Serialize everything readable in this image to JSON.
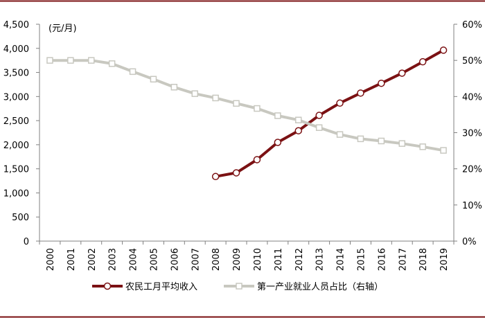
{
  "chart_data": {
    "type": "line",
    "title": "",
    "unit_label": "(元/月)",
    "categories": [
      "2000",
      "2001",
      "2002",
      "2003",
      "2004",
      "2005",
      "2006",
      "2007",
      "2008",
      "2009",
      "2010",
      "2011",
      "2012",
      "2013",
      "2014",
      "2015",
      "2016",
      "2017",
      "2018",
      "2019"
    ],
    "y_left": {
      "range": [
        0,
        4500
      ],
      "ticks": [
        "0",
        "500",
        "1,000",
        "1,500",
        "2,000",
        "2,500",
        "3,000",
        "3,500",
        "4,000",
        "4,500"
      ]
    },
    "y_right": {
      "range": [
        0,
        60
      ],
      "ticks": [
        "0%",
        "10%",
        "20%",
        "30%",
        "40%",
        "50%",
        "60%"
      ]
    },
    "grid": false,
    "legend_position": "bottom",
    "series": [
      {
        "name": "农民工月平均收入",
        "axis": "left",
        "color": "#7b1113",
        "marker": "circle",
        "values": [
          null,
          null,
          null,
          null,
          null,
          null,
          null,
          null,
          1340,
          1417,
          1690,
          2049,
          2290,
          2609,
          2864,
          3072,
          3275,
          3485,
          3721,
          3962
        ]
      },
      {
        "name": "第一产业就业人员占比（右轴）",
        "axis": "right",
        "color": "#c8c8c0",
        "marker": "square",
        "values": [
          50.0,
          50.0,
          50.0,
          49.1,
          46.9,
          44.8,
          42.6,
          40.8,
          39.6,
          38.1,
          36.7,
          34.7,
          33.5,
          31.4,
          29.5,
          28.3,
          27.7,
          27.0,
          26.1,
          25.1
        ]
      }
    ]
  }
}
